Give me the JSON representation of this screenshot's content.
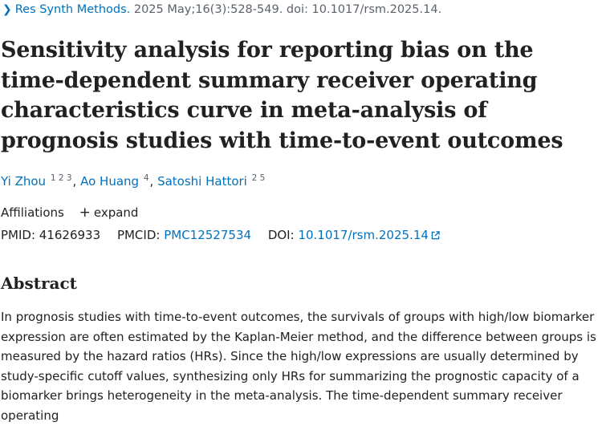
{
  "citation": {
    "journal": "Res Synth Methods.",
    "details": "2025 May;16(3):528-549. doi: 10.1017/rsm.2025.14."
  },
  "title": "Sensitivity analysis for reporting bias on the time-dependent summary receiver operating characteristics curve in meta-analysis of prognosis studies with time-to-event outcomes",
  "authors": [
    {
      "name": "Yi Zhou",
      "affils": "1 2 3"
    },
    {
      "name": "Ao Huang",
      "affils": "4"
    },
    {
      "name": "Satoshi Hattori",
      "affils": "2 5"
    }
  ],
  "affiliations": {
    "label": "Affiliations",
    "expand_label": "expand"
  },
  "identifiers": {
    "pmid_label": "PMID:",
    "pmid": "41626933",
    "pmcid_label": "PMCID:",
    "pmcid": "PMC12527534",
    "doi_label": "DOI:",
    "doi": "10.1017/rsm.2025.14"
  },
  "abstract": {
    "heading": "Abstract",
    "text": "In prognosis studies with time-to-event outcomes, the survivals of groups with high/low biomarker expression are often estimated by the Kaplan-Meier method, and the difference between groups is measured by the hazard ratios (HRs). Since the high/low expressions are usually determined by study-specific cutoff values, synthesizing only HRs for summarizing the prognostic capacity of a biomarker brings heterogeneity in the meta-analysis. The time-dependent summary receiver operating"
  },
  "colors": {
    "link": "#0071bc",
    "text": "#212121",
    "muted": "#5b616b"
  }
}
